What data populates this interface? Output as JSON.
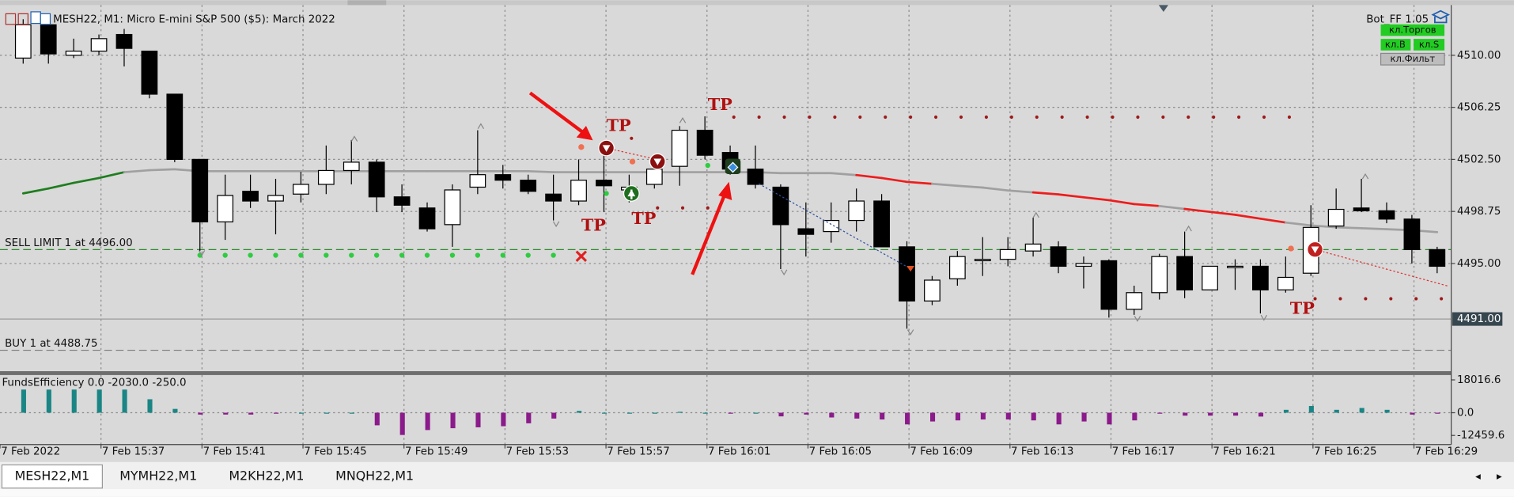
{
  "window": {
    "title": "MESH22, M1:  Micro E-mini S&P 500 ($5): March 2022",
    "bot": "Bot_FF 1.05",
    "buttons": [
      "кл.Торгов",
      "кл.В",
      "кл.S",
      "кл.Фильт"
    ]
  },
  "chart_data": {
    "type": "candlestick",
    "categories": [
      "7 Feb 2022",
      null,
      null,
      null,
      "7 Feb 15:37",
      null,
      null,
      null,
      "7 Feb 15:41",
      null,
      null,
      null,
      "7 Feb 15:45",
      null,
      null,
      null,
      "7 Feb 15:49",
      null,
      null,
      null,
      "7 Feb 15:53",
      null,
      null,
      null,
      "7 Feb 15:57",
      null,
      null,
      null,
      "7 Feb 16:01",
      null,
      null,
      null,
      "7 Feb 16:05",
      null,
      null,
      null,
      "7 Feb 16:09",
      null,
      null,
      null,
      "7 Feb 16:13",
      null,
      null,
      null,
      "7 Feb 16:17",
      null,
      null,
      null,
      "7 Feb 16:21",
      null,
      null,
      null,
      "7 Feb 16:25",
      null,
      null,
      null,
      "7 Feb 16:29"
    ],
    "open": [
      4509.8,
      4512.2,
      4510.0,
      4510.3,
      4511.5,
      4510.3,
      4507.2,
      4502.5,
      4498.0,
      4500.2,
      4499.5,
      4500.0,
      4500.7,
      4501.7,
      4502.3,
      4499.8,
      4499.0,
      4497.8,
      4500.5,
      4501.4,
      4501.0,
      4500.0,
      4499.5,
      4501.0,
      4500.3,
      4500.7,
      4502.0,
      4504.6,
      4503.0,
      4501.8,
      4500.5,
      4497.5,
      4497.3,
      4498.1,
      4499.5,
      4496.2,
      4492.3,
      4493.9,
      4495.2,
      4495.3,
      4495.9,
      4496.2,
      4494.8,
      4495.2,
      4491.7,
      4492.9,
      4495.5,
      4493.1,
      4494.7,
      4494.8,
      4493.1,
      4494.3,
      4497.7,
      4499.0,
      4498.8,
      4498.2,
      4496.0
    ],
    "high": [
      4512.6,
      4512.6,
      4511.2,
      4511.5,
      4511.9,
      4510.3,
      4507.2,
      4502.5,
      4501.4,
      4501.4,
      4501.1,
      4501.6,
      4503.5,
      4503.9,
      4502.5,
      4500.7,
      4499.4,
      4500.7,
      4504.6,
      4502.1,
      4501.4,
      4501.4,
      4502.5,
      4503.2,
      4501.4,
      4502.8,
      4504.9,
      4505.6,
      4503.5,
      4503.5,
      4500.7,
      4499.4,
      4499.4,
      4500.4,
      4500.0,
      4496.6,
      4494.1,
      4495.9,
      4496.9,
      4496.9,
      4498.3,
      4496.6,
      4495.5,
      4495.3,
      4493.4,
      4495.7,
      4497.3,
      4494.8,
      4495.3,
      4495.3,
      4495.5,
      4499.2,
      4500.4,
      4501.1,
      4499.4,
      4498.5,
      4496.2
    ],
    "low": [
      4509.4,
      4509.4,
      4509.8,
      4510.0,
      4509.2,
      4506.9,
      4502.3,
      4495.9,
      4496.7,
      4499.0,
      4497.1,
      4499.4,
      4500.0,
      4500.7,
      4498.7,
      4498.7,
      4497.3,
      4496.2,
      4500.0,
      4500.4,
      4500.0,
      4498.1,
      4499.2,
      4498.7,
      4499.4,
      4500.4,
      4500.6,
      4502.5,
      4501.4,
      4500.4,
      4494.6,
      4495.5,
      4496.5,
      4497.3,
      4496.2,
      4490.3,
      4492.0,
      4493.4,
      4494.1,
      4494.8,
      4495.5,
      4494.3,
      4493.2,
      4491.1,
      4491.3,
      4492.4,
      4492.5,
      4493.1,
      4493.1,
      4491.4,
      4492.9,
      4494.1,
      4497.5,
      4498.7,
      4497.9,
      4495.0,
      4494.3
    ],
    "close": [
      4512.2,
      4510.1,
      4510.3,
      4511.2,
      4510.5,
      4507.2,
      4502.5,
      4498.0,
      4499.9,
      4499.5,
      4499.9,
      4500.7,
      4501.7,
      4502.3,
      4499.8,
      4499.2,
      4497.5,
      4500.3,
      4501.4,
      4501.0,
      4500.2,
      4499.5,
      4501.0,
      4500.6,
      4500.5,
      4501.8,
      4504.6,
      4502.8,
      4501.8,
      4500.7,
      4497.8,
      4497.1,
      4498.1,
      4499.5,
      4496.2,
      4492.3,
      4493.8,
      4495.5,
      4495.3,
      4496.0,
      4496.4,
      4494.8,
      4495.0,
      4491.7,
      4492.9,
      4495.5,
      4493.1,
      4494.8,
      4494.8,
      4493.1,
      4494.0,
      4497.6,
      4498.9,
      4498.8,
      4498.2,
      4496.0,
      4494.8
    ],
    "up_color": "#ffffff",
    "down_color": "#000000",
    "ylim": [
      4487.31,
      4513.62
    ],
    "yticks": [
      {
        "value": 4510,
        "label": "4510.00"
      },
      4506.25,
      {
        "value": 4502.5,
        "label": "4502.50"
      },
      4498.75,
      {
        "value": 4495,
        "label": "4495.00"
      }
    ],
    "grid": true,
    "last_price": {
      "value": 4491,
      "label": "4491.00"
    },
    "ma": {
      "values": [
        4500.05,
        4500.4,
        4500.81,
        4501.16,
        4501.58,
        4501.72,
        4501.79,
        4501.65,
        4501.65,
        4501.65,
        4501.65,
        4501.65,
        4501.65,
        4501.65,
        4501.65,
        4501.65,
        4501.65,
        4501.65,
        4501.65,
        4501.65,
        4501.65,
        4501.58,
        4501.58,
        4501.58,
        4501.58,
        4501.58,
        4501.58,
        4501.58,
        4501.58,
        4501.58,
        4501.51,
        4501.51,
        4501.51,
        4501.37,
        4501.16,
        4500.88,
        4500.74,
        4500.6,
        4500.47,
        4500.26,
        4500.12,
        4499.98,
        4499.77,
        4499.56,
        4499.28,
        4499.14,
        4498.93,
        4498.72,
        4498.51,
        4498.23,
        4497.95,
        4497.74,
        4497.61,
        4497.54,
        4497.47,
        4497.4,
        4497.26
      ],
      "colors": [
        "#1e7d1e",
        "#1e7d1e",
        "#1e7d1e",
        "#1e7d1e",
        "#a0a0a0",
        "#a0a0a0",
        "#a0a0a0",
        "#a0a0a0",
        "#a0a0a0",
        "#a0a0a0",
        "#a0a0a0",
        "#a0a0a0",
        "#a0a0a0",
        "#a0a0a0",
        "#a0a0a0",
        "#a0a0a0",
        "#a0a0a0",
        "#a0a0a0",
        "#a0a0a0",
        "#a0a0a0",
        "#a0a0a0",
        "#a0a0a0",
        "#a0a0a0",
        "#a0a0a0",
        "#a0a0a0",
        "#a0a0a0",
        "#a0a0a0",
        "#a0a0a0",
        "#a0a0a0",
        "#a0a0a0",
        "#a0a0a0",
        "#a0a0a0",
        "#a0a0a0",
        "#ee1c1c",
        "#ee1c1c",
        "#ee1c1c",
        "#a0a0a0",
        "#a0a0a0",
        "#a0a0a0",
        "#a0a0a0",
        "#ee1c1c",
        "#ee1c1c",
        "#ee1c1c",
        "#ee1c1c",
        "#ee1c1c",
        "#a0a0a0",
        "#ee1c1c",
        "#ee1c1c",
        "#ee1c1c",
        "#ee1c1c",
        "#a0a0a0",
        "#a0a0a0",
        "#a0a0a0",
        "#a0a0a0",
        "#a0a0a0",
        "#a0a0a0",
        "#a0a0a0"
      ]
    },
    "orders": [
      {
        "label": "SELL LIMIT 1 at 4496.00",
        "price": 4496,
        "color": "#2e8b2e"
      },
      {
        "label": "BUY 1 at 4488.75",
        "price": 4488.75,
        "color": "#7a7a7a"
      }
    ],
    "annotations": [
      "TP",
      "TP",
      "TP",
      "TP",
      "TP"
    ],
    "indicator": {
      "type": "bar",
      "title": "FundsEfficiency 0.0 -2030.0 -250.0",
      "values": [
        12700,
        12700,
        12700,
        12700,
        12700,
        7400,
        2100,
        -1000,
        -1000,
        -1000,
        -500,
        0,
        0,
        0,
        -6900,
        -12200,
        -9500,
        -8500,
        -8000,
        -7400,
        -5800,
        -3200,
        1000,
        0,
        0,
        0,
        500,
        0,
        -500,
        0,
        -2000,
        -1000,
        -2600,
        -3200,
        -3700,
        -6400,
        -4800,
        -4200,
        -3700,
        -3700,
        -4200,
        -6400,
        -4800,
        -6400,
        -4200,
        -500,
        -1600,
        -1600,
        -1600,
        -2100,
        1600,
        3700,
        1600,
        2600,
        1600,
        -1000,
        -500
      ],
      "ylim": [
        -17487,
        20666
      ],
      "yticks": [
        18016.6,
        {
          "value": 0,
          "label": "0.0"
        },
        -12459.6
      ],
      "positive_color": "#1a8585",
      "negative_color": "#8b1a8b"
    }
  },
  "tabs": [
    "MESH22,M1",
    "MYMH22,M1",
    "M2KH22,M1",
    "MNQH22,M1"
  ]
}
